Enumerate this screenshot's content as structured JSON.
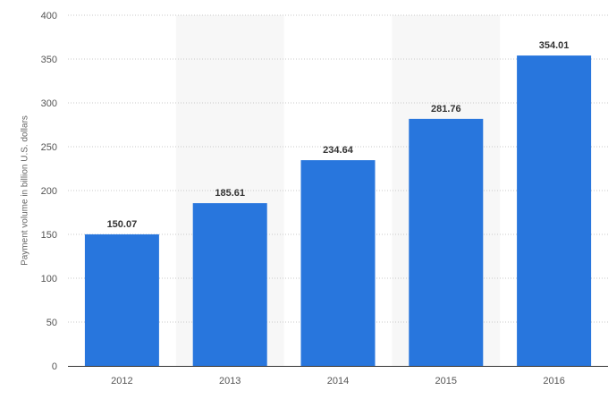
{
  "chart_data": {
    "type": "bar",
    "title": "",
    "xlabel": "",
    "ylabel": "Payment volume in billion U.S. dollars",
    "categories": [
      "2012",
      "2013",
      "2014",
      "2015",
      "2016"
    ],
    "values": [
      150.07,
      185.61,
      234.64,
      281.76,
      354.01
    ],
    "value_labels": [
      "150.07",
      "185.61",
      "234.64",
      "281.76",
      "354.01"
    ],
    "ylim": [
      0,
      400
    ],
    "yticks": [
      0,
      50,
      100,
      150,
      200,
      250,
      300,
      350,
      400
    ],
    "grid": true,
    "legend": "none",
    "colors": {
      "bar": "#2876dd",
      "label": "#333333",
      "tick": "#555555",
      "grid": "#c8c8c8",
      "band": "#f7f7f7",
      "axis": "#333333"
    }
  }
}
